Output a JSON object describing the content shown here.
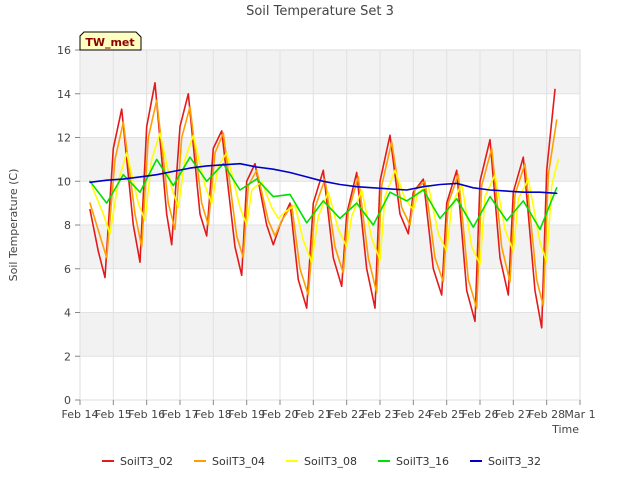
{
  "chart_data": {
    "type": "line",
    "title": "Soil Temperature Set 3",
    "xlabel": "Time",
    "ylabel": "Soil Temperature (C)",
    "station_label": "TW_met",
    "ylim": [
      0,
      16
    ],
    "yticks": [
      0,
      2,
      4,
      6,
      8,
      10,
      12,
      14,
      16
    ],
    "xlim": [
      0,
      15
    ],
    "xtick_labels": [
      "Feb 14",
      "Feb 15",
      "Feb 16",
      "Feb 17",
      "Feb 18",
      "Feb 19",
      "Feb 20",
      "Feb 21",
      "Feb 22",
      "Feb 23",
      "Feb 24",
      "Feb 25",
      "Feb 26",
      "Feb 27",
      "Feb 28",
      "Mar 1"
    ],
    "grid": true,
    "legend_position": "bottom",
    "series": [
      {
        "name": "SoilT3_02",
        "color": "#e31a1c",
        "x": [
          0.3,
          0.55,
          0.75,
          1.0,
          1.25,
          1.6,
          1.8,
          2.0,
          2.25,
          2.6,
          2.75,
          3.0,
          3.25,
          3.6,
          3.8,
          4.0,
          4.25,
          4.65,
          4.85,
          5.0,
          5.25,
          5.6,
          5.8,
          6.0,
          6.3,
          6.55,
          6.8,
          7.0,
          7.3,
          7.6,
          7.85,
          8.0,
          8.3,
          8.6,
          8.85,
          9.0,
          9.3,
          9.6,
          9.85,
          10.0,
          10.3,
          10.6,
          10.85,
          11.0,
          11.3,
          11.6,
          11.85,
          12.0,
          12.3,
          12.6,
          12.85,
          13.0,
          13.3,
          13.65,
          13.85,
          14.0,
          14.25
        ],
        "y": [
          8.7,
          6.8,
          5.6,
          11.5,
          13.3,
          8.0,
          6.3,
          12.5,
          14.5,
          8.5,
          7.1,
          12.5,
          14.0,
          8.5,
          7.5,
          11.5,
          12.3,
          7.0,
          5.7,
          10.0,
          10.8,
          8.0,
          7.1,
          8.0,
          9.0,
          5.5,
          4.2,
          9.0,
          10.5,
          6.5,
          5.2,
          8.5,
          10.4,
          6.0,
          4.2,
          10.0,
          12.1,
          8.5,
          7.6,
          9.5,
          10.1,
          6.0,
          4.8,
          9.0,
          10.5,
          5.0,
          3.6,
          10.0,
          11.9,
          6.5,
          4.8,
          9.5,
          11.1,
          5.0,
          3.3,
          10.5,
          14.2
        ]
      },
      {
        "name": "SoilT3_04",
        "color": "#ff9f00",
        "x": [
          0.3,
          0.6,
          0.8,
          1.05,
          1.3,
          1.65,
          1.85,
          2.05,
          2.3,
          2.65,
          2.85,
          3.05,
          3.3,
          3.65,
          3.85,
          4.05,
          4.3,
          4.7,
          4.9,
          5.05,
          5.3,
          5.65,
          5.85,
          6.05,
          6.35,
          6.6,
          6.85,
          7.05,
          7.35,
          7.65,
          7.9,
          8.05,
          8.35,
          8.65,
          8.9,
          9.05,
          9.35,
          9.65,
          9.9,
          10.05,
          10.35,
          10.65,
          10.9,
          11.05,
          11.35,
          11.65,
          11.9,
          12.05,
          12.35,
          12.65,
          12.9,
          13.05,
          13.35,
          13.7,
          13.9,
          14.05,
          14.3
        ],
        "y": [
          9.0,
          7.5,
          6.5,
          11.0,
          12.7,
          8.5,
          7.0,
          12.0,
          13.7,
          9.0,
          7.8,
          12.0,
          13.4,
          9.0,
          8.0,
          11.3,
          12.2,
          7.5,
          6.5,
          9.8,
          10.5,
          8.2,
          7.5,
          8.2,
          8.9,
          6.0,
          4.8,
          8.8,
          10.1,
          7.0,
          5.8,
          8.6,
          10.2,
          6.5,
          4.9,
          9.8,
          11.8,
          8.8,
          8.0,
          9.6,
          10.0,
          6.5,
          5.4,
          9.0,
          10.3,
          5.5,
          4.2,
          9.8,
          11.5,
          7.0,
          5.4,
          9.4,
          10.8,
          5.5,
          4.3,
          10.3,
          12.8
        ]
      },
      {
        "name": "SoilT3_08",
        "color": "#ffff00",
        "x": [
          0.35,
          0.7,
          0.9,
          1.15,
          1.4,
          1.75,
          1.95,
          2.15,
          2.4,
          2.75,
          2.95,
          3.15,
          3.4,
          3.75,
          3.95,
          4.15,
          4.4,
          4.8,
          5.0,
          5.15,
          5.45,
          5.75,
          5.95,
          6.15,
          6.45,
          6.7,
          6.95,
          7.15,
          7.45,
          7.75,
          8.0,
          8.15,
          8.45,
          8.75,
          9.0,
          9.15,
          9.45,
          9.75,
          10.0,
          10.15,
          10.45,
          10.75,
          11.0,
          11.15,
          11.45,
          11.75,
          12.0,
          12.15,
          12.45,
          12.75,
          13.0,
          13.15,
          13.45,
          13.8,
          14.0,
          14.15,
          14.35
        ],
        "y": [
          9.8,
          8.5,
          7.6,
          10.0,
          11.3,
          9.0,
          8.2,
          11.0,
          12.2,
          9.7,
          8.8,
          11.0,
          12.1,
          9.8,
          9.0,
          10.7,
          11.3,
          8.8,
          8.0,
          9.6,
          10.0,
          8.8,
          8.3,
          8.6,
          8.9,
          7.3,
          6.3,
          8.4,
          9.5,
          7.8,
          7.0,
          8.4,
          9.6,
          7.4,
          6.4,
          9.3,
          10.5,
          9.2,
          8.7,
          9.5,
          9.8,
          7.6,
          6.8,
          8.9,
          9.9,
          7.0,
          6.2,
          9.3,
          10.3,
          7.8,
          6.8,
          9.2,
          10.1,
          7.2,
          6.3,
          9.8,
          11.0
        ]
      },
      {
        "name": "SoilT3_16",
        "color": "#00e000",
        "x": [
          0.3,
          0.8,
          1.3,
          1.8,
          2.3,
          2.8,
          3.3,
          3.8,
          4.3,
          4.8,
          5.3,
          5.8,
          6.3,
          6.8,
          7.3,
          7.8,
          8.3,
          8.8,
          9.3,
          9.8,
          10.3,
          10.8,
          11.3,
          11.8,
          12.3,
          12.8,
          13.3,
          13.8,
          14.3
        ],
        "y": [
          10.0,
          9.0,
          10.3,
          9.5,
          11.0,
          9.8,
          11.1,
          10.0,
          10.8,
          9.6,
          10.1,
          9.3,
          9.4,
          8.1,
          9.1,
          8.3,
          9.0,
          8.0,
          9.5,
          9.1,
          9.6,
          8.3,
          9.2,
          7.9,
          9.3,
          8.2,
          9.1,
          7.8,
          9.7
        ]
      },
      {
        "name": "SoilT3_32",
        "color": "#0000c8",
        "x": [
          0.3,
          0.8,
          1.3,
          1.8,
          2.3,
          2.8,
          3.3,
          3.8,
          4.3,
          4.8,
          5.3,
          5.8,
          6.3,
          6.8,
          7.3,
          7.8,
          8.3,
          8.8,
          9.3,
          9.8,
          10.3,
          10.8,
          11.3,
          11.8,
          12.3,
          12.8,
          13.3,
          13.8,
          14.3
        ],
        "y": [
          9.95,
          10.05,
          10.1,
          10.2,
          10.3,
          10.45,
          10.6,
          10.7,
          10.75,
          10.8,
          10.65,
          10.55,
          10.4,
          10.2,
          10.0,
          9.85,
          9.75,
          9.7,
          9.65,
          9.6,
          9.75,
          9.85,
          9.9,
          9.7,
          9.6,
          9.55,
          9.5,
          9.5,
          9.45
        ]
      }
    ]
  }
}
